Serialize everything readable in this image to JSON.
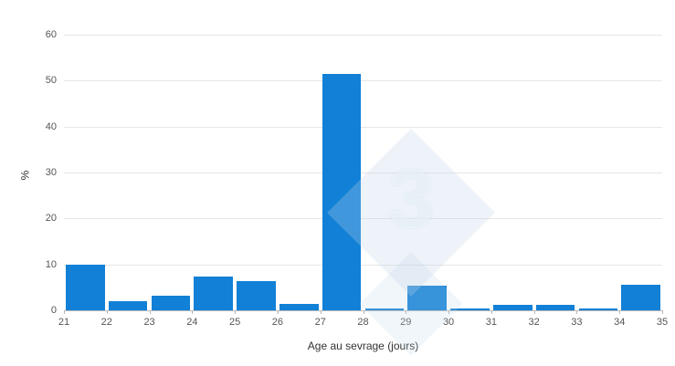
{
  "chart_data": {
    "type": "bar",
    "bin_edges": [
      21,
      22,
      23,
      24,
      25,
      26,
      27,
      28,
      29,
      30,
      31,
      32,
      33,
      34,
      35
    ],
    "x_tick_labels": [
      "21",
      "22",
      "23",
      "24",
      "25",
      "26",
      "27",
      "28",
      "29",
      "30",
      "31",
      "32",
      "33",
      "34",
      "35"
    ],
    "values": [
      9.9,
      2.0,
      3.1,
      7.4,
      6.3,
      1.4,
      51.5,
      0.4,
      5.4,
      0.4,
      1.2,
      1.2,
      0.4,
      5.5
    ],
    "title": "",
    "xlabel": "Age au sevrage (jours)",
    "ylabel": "%",
    "ylim": [
      0,
      60
    ],
    "yticks": [
      0,
      10,
      20,
      30,
      40,
      50,
      60
    ],
    "legend": null,
    "grid": "horizontal",
    "bar_color": "#1180d6",
    "grid_color": "#e6e6e6",
    "axis_color": "#b9b9b9",
    "watermark_text": "3"
  }
}
